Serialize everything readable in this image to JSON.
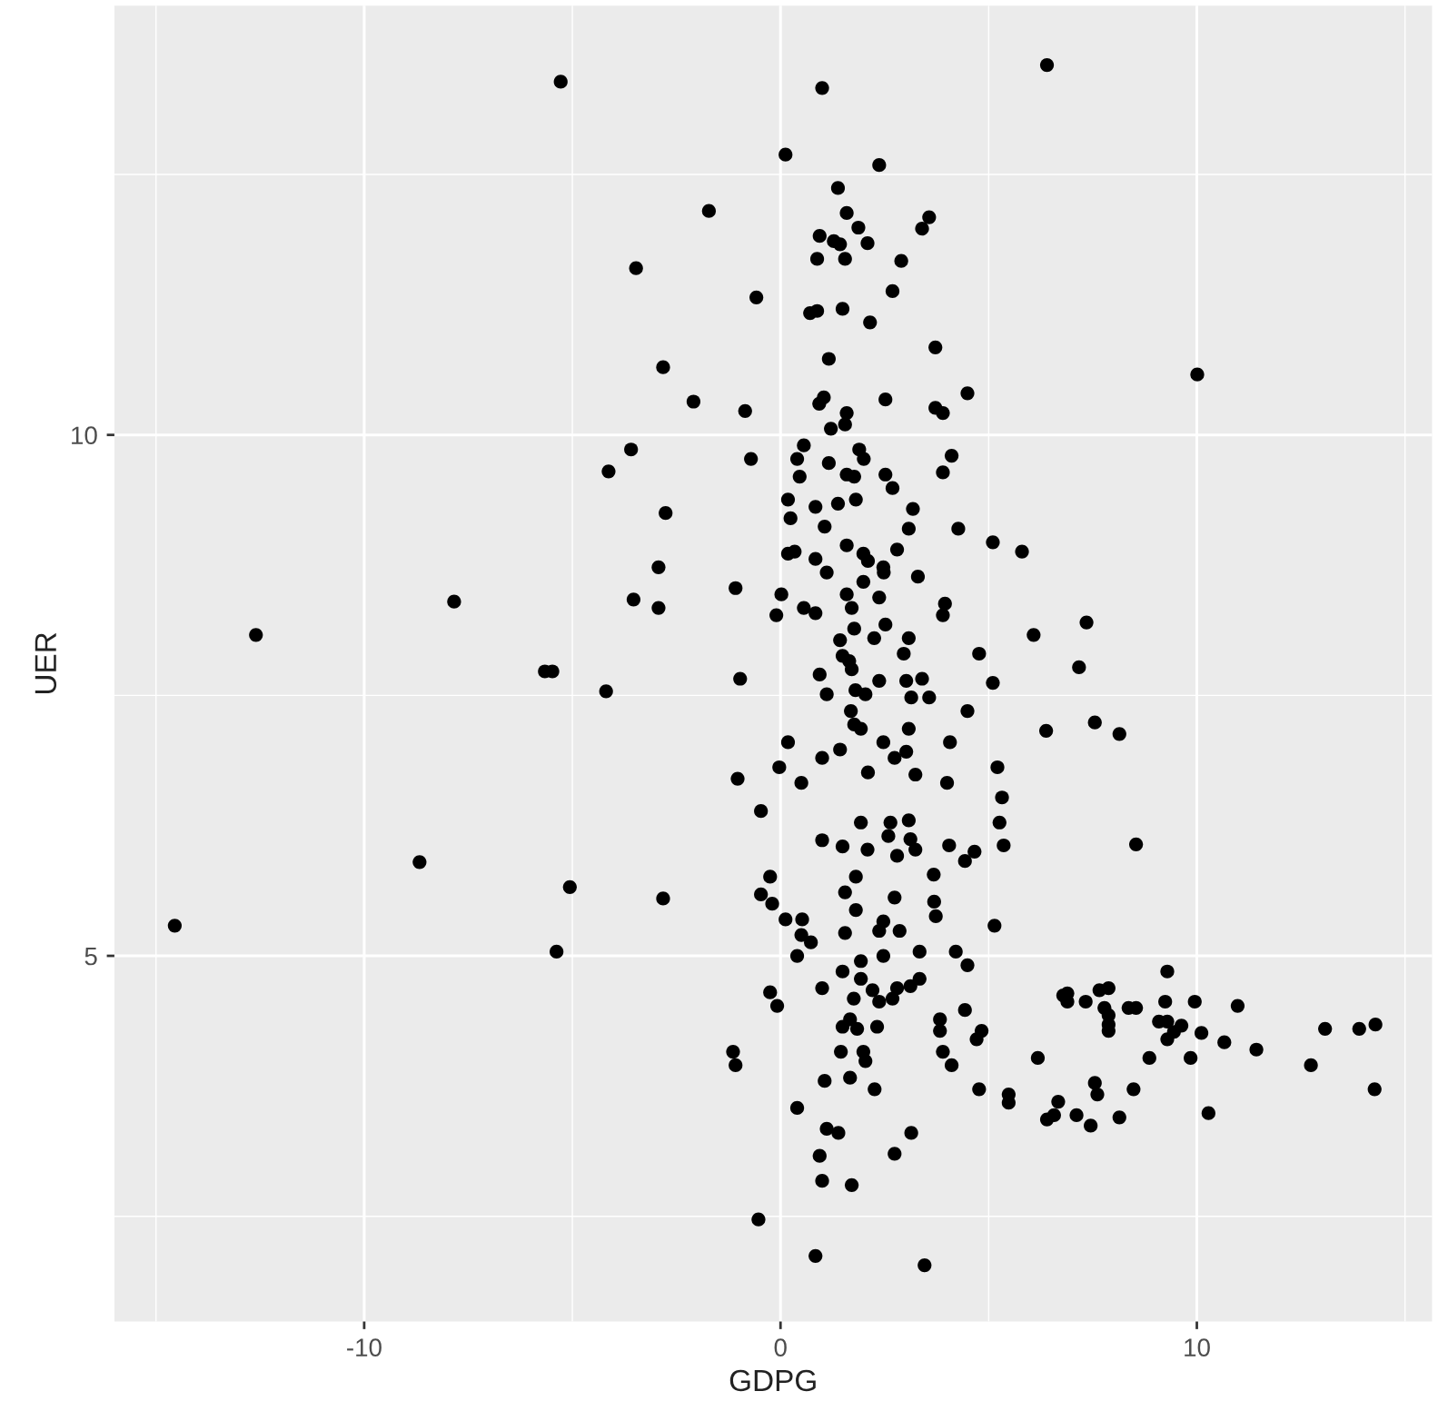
{
  "chart_data": {
    "type": "scatter",
    "xlabel": "GDPG",
    "ylabel": "UER",
    "xlim": [
      -16.0,
      15.65
    ],
    "ylim": [
      1.49,
      14.12
    ],
    "xticks": [
      -10,
      0,
      10
    ],
    "yticks": [
      5,
      10
    ],
    "grid": true,
    "marker": "circle",
    "series": [
      {
        "color": "#000000",
        "x": [
          6.4,
          1.0,
          0.12,
          2.37,
          1.38,
          -1.72,
          1.59,
          1.87,
          3.57,
          3.4,
          0.94,
          1.28,
          1.43,
          2.09,
          0.88,
          1.55,
          2.9,
          2.69,
          -0.58,
          0.71,
          0.88,
          1.49,
          2.15,
          3.72,
          1.16,
          10.01,
          -2.09,
          -0.85,
          1.04,
          0.93,
          2.52,
          3.72,
          3.9,
          4.49,
          1.59,
          1.55,
          1.21,
          0.56,
          -0.71,
          0.4,
          1.16,
          1.89,
          2.0,
          4.11,
          3.9,
          0.46,
          1.59,
          1.77,
          2.52,
          2.69,
          0.18,
          0.24,
          0.84,
          1.38,
          1.81,
          3.18,
          1.06,
          3.08,
          4.27,
          5.1,
          5.8,
          0.18,
          0.34,
          0.84,
          1.59,
          1.99,
          2.1,
          2.47,
          2.48,
          2.8,
          1.11,
          1.99,
          3.3,
          -1.08,
          0.02,
          1.59,
          2.37,
          -0.1,
          0.56,
          0.84,
          1.71,
          3.95,
          3.9,
          7.35,
          6.08,
          1.77,
          2.52,
          1.43,
          2.25,
          3.08,
          2.96,
          1.49,
          1.65,
          1.71,
          4.77,
          7.17,
          -0.97,
          0.94,
          2.37,
          3.02,
          3.4,
          5.1,
          -5.28,
          -3.47,
          -2.82,
          -3.59,
          -4.13,
          -2.76,
          -2.93,
          -7.84,
          -3.53,
          -2.93,
          -12.6,
          -5.66,
          -5.48,
          -4.19,
          -8.67,
          -5.06,
          -2.82,
          -14.55,
          -5.38,
          1.11,
          1.8,
          2.04,
          3.14,
          3.57,
          4.49,
          1.69,
          1.77,
          1.93,
          3.08,
          6.38,
          0.18,
          2.47,
          4.07,
          1.43,
          3.02,
          2.74,
          1.0,
          -0.03,
          -1.03,
          0.5,
          2.1,
          3.24,
          4.0,
          5.21,
          5.32,
          -0.47,
          1.93,
          2.64,
          3.08,
          5.26,
          1.0,
          1.49,
          2.09,
          2.59,
          3.12,
          3.24,
          2.8,
          4.05,
          4.66,
          5.36,
          4.43,
          -0.25,
          1.81,
          3.68,
          -0.47,
          -0.2,
          1.55,
          2.74,
          3.69,
          1.81,
          3.73,
          0.12,
          0.52,
          0.5,
          0.73,
          1.55,
          2.47,
          2.37,
          2.86,
          5.14,
          0.4,
          1.93,
          2.47,
          3.34,
          4.21,
          4.49,
          1.49,
          1.93,
          1.0,
          -0.25,
          -0.08,
          1.76,
          2.21,
          2.37,
          2.69,
          2.8,
          3.12,
          3.34,
          4.43,
          1.67,
          1.49,
          1.84,
          2.32,
          3.83,
          3.83,
          4.83,
          4.71,
          -1.14,
          -1.08,
          1.45,
          1.99,
          2.04,
          3.9,
          4.11,
          6.18,
          1.06,
          1.67,
          2.26,
          4.77,
          5.48,
          5.48,
          0.4,
          6.4,
          1.11,
          1.39,
          3.14,
          0.94,
          2.74,
          1.0,
          1.71,
          -0.53,
          0.84,
          3.46,
          7.55,
          8.14,
          8.54,
          9.29,
          6.79,
          6.89,
          6.89,
          7.33,
          7.66,
          7.88,
          7.78,
          7.88,
          7.88,
          7.88,
          8.36,
          8.54,
          9.24,
          9.95,
          10.98,
          9.09,
          9.29,
          9.29,
          9.45,
          9.63,
          10.11,
          10.66,
          11.43,
          13.08,
          13.9,
          14.29,
          12.74,
          8.86,
          9.85,
          7.55,
          7.61,
          8.48,
          14.27,
          6.67,
          6.57,
          7.11,
          7.45,
          8.14,
          10.28
        ],
        "values": [
          13.55,
          13.33,
          12.69,
          12.59,
          12.37,
          12.15,
          12.13,
          11.99,
          12.09,
          11.98,
          11.91,
          11.86,
          11.83,
          11.84,
          11.69,
          11.69,
          11.67,
          11.38,
          11.32,
          11.17,
          11.19,
          11.21,
          11.08,
          10.84,
          10.73,
          10.58,
          10.32,
          10.23,
          10.36,
          10.3,
          10.34,
          10.26,
          10.21,
          10.4,
          10.21,
          10.1,
          10.06,
          9.9,
          9.77,
          9.77,
          9.73,
          9.86,
          9.77,
          9.8,
          9.64,
          9.6,
          9.62,
          9.6,
          9.62,
          9.49,
          9.38,
          9.2,
          9.31,
          9.34,
          9.38,
          9.29,
          9.12,
          9.1,
          9.1,
          8.97,
          8.88,
          8.86,
          8.88,
          8.81,
          8.94,
          8.86,
          8.79,
          8.73,
          8.68,
          8.9,
          8.68,
          8.59,
          8.64,
          8.53,
          8.47,
          8.47,
          8.44,
          8.27,
          8.34,
          8.29,
          8.34,
          8.38,
          8.27,
          8.2,
          8.08,
          8.14,
          8.18,
          8.03,
          8.05,
          8.05,
          7.9,
          7.88,
          7.83,
          7.75,
          7.9,
          7.77,
          7.66,
          7.7,
          7.64,
          7.64,
          7.66,
          7.62,
          13.39,
          11.6,
          10.65,
          9.86,
          9.65,
          9.25,
          8.73,
          8.4,
          8.42,
          8.34,
          8.08,
          7.73,
          7.73,
          7.54,
          5.9,
          5.66,
          5.55,
          5.29,
          5.04,
          7.51,
          7.55,
          7.51,
          7.48,
          7.48,
          7.35,
          7.35,
          7.22,
          7.18,
          7.18,
          7.16,
          7.05,
          7.05,
          7.05,
          6.98,
          6.96,
          6.9,
          6.9,
          6.81,
          6.7,
          6.66,
          6.76,
          6.74,
          6.66,
          6.81,
          6.52,
          6.39,
          6.28,
          6.28,
          6.3,
          6.28,
          6.11,
          6.05,
          6.02,
          6.15,
          6.12,
          6.02,
          5.96,
          6.06,
          6.0,
          6.06,
          5.91,
          5.76,
          5.76,
          5.78,
          5.59,
          5.5,
          5.61,
          5.56,
          5.52,
          5.44,
          5.38,
          5.35,
          5.35,
          5.2,
          5.13,
          5.22,
          5.33,
          5.24,
          5.24,
          5.29,
          5.0,
          4.95,
          5.0,
          5.04,
          5.04,
          4.91,
          4.85,
          4.78,
          4.69,
          4.65,
          4.52,
          4.59,
          4.67,
          4.56,
          4.59,
          4.69,
          4.71,
          4.78,
          4.48,
          4.39,
          4.32,
          4.3,
          4.32,
          4.39,
          4.28,
          4.28,
          4.2,
          4.08,
          3.95,
          4.08,
          4.08,
          3.99,
          4.08,
          3.95,
          4.02,
          3.8,
          3.83,
          3.72,
          3.72,
          3.67,
          3.59,
          3.54,
          3.43,
          3.34,
          3.3,
          3.3,
          3.08,
          3.1,
          2.84,
          2.8,
          2.47,
          2.12,
          2.03,
          7.24,
          7.13,
          6.07,
          4.85,
          4.62,
          4.64,
          4.56,
          4.56,
          4.67,
          4.69,
          4.5,
          4.43,
          4.34,
          4.28,
          4.5,
          4.5,
          4.56,
          4.56,
          4.52,
          4.37,
          4.37,
          4.2,
          4.27,
          4.33,
          4.26,
          4.17,
          4.1,
          4.3,
          4.3,
          4.34,
          3.95,
          4.02,
          4.02,
          3.78,
          3.67,
          3.72,
          3.72,
          3.6,
          3.47,
          3.47,
          3.37,
          3.45,
          3.49
        ]
      }
    ]
  }
}
